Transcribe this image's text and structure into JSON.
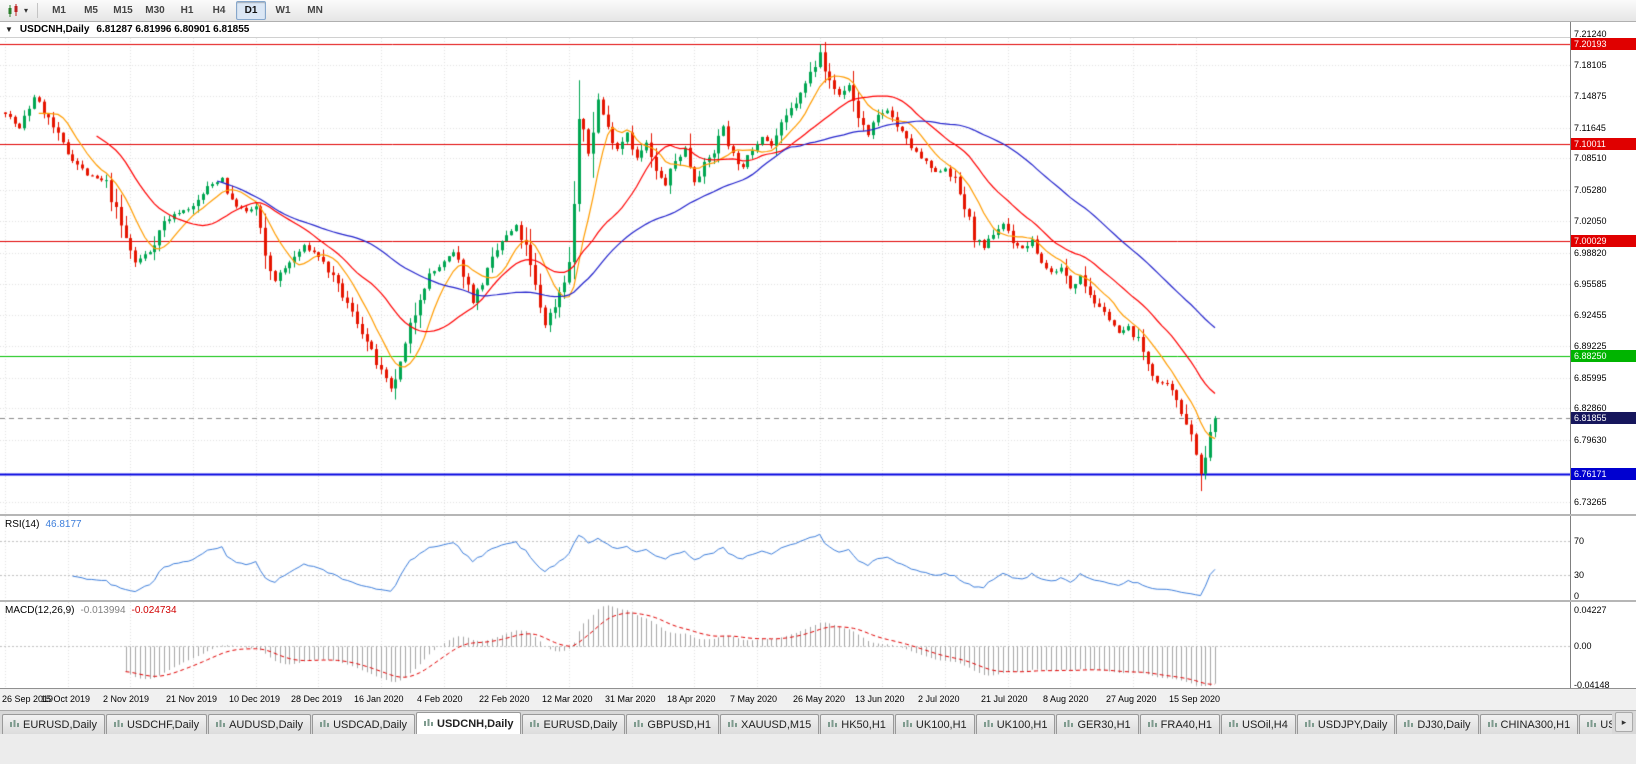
{
  "toolbar": {
    "timeframes": [
      "M1",
      "M5",
      "M15",
      "M30",
      "H1",
      "H4",
      "D1",
      "W1",
      "MN"
    ],
    "active_timeframe": "D1"
  },
  "chart": {
    "title_symbol": "USDCNH,Daily",
    "ohlc": "6.81287 6.81996 6.80901 6.81855"
  },
  "price_axis": [
    {
      "label": "7.21240",
      "price": 7.2124,
      "type": "plain"
    },
    {
      "label": "7.20193",
      "price": 7.20193,
      "type": "red"
    },
    {
      "label": "7.18105",
      "price": 7.18105,
      "type": "plain"
    },
    {
      "label": "7.14875",
      "price": 7.14875,
      "type": "plain"
    },
    {
      "label": "7.11645",
      "price": 7.11645,
      "type": "plain"
    },
    {
      "label": "7.10011",
      "price": 7.10011,
      "type": "red"
    },
    {
      "label": "7.08510",
      "price": 7.0851,
      "type": "plain"
    },
    {
      "label": "7.05280",
      "price": 7.0528,
      "type": "plain"
    },
    {
      "label": "7.02050",
      "price": 7.0205,
      "type": "plain"
    },
    {
      "label": "7.00029",
      "price": 7.00029,
      "type": "red"
    },
    {
      "label": "6.98820",
      "price": 6.9882,
      "type": "plain"
    },
    {
      "label": "6.95585",
      "price": 6.95585,
      "type": "plain"
    },
    {
      "label": "6.92455",
      "price": 6.92455,
      "type": "plain"
    },
    {
      "label": "6.89225",
      "price": 6.89225,
      "type": "plain"
    },
    {
      "label": "6.88250",
      "price": 6.8825,
      "type": "green"
    },
    {
      "label": "6.85995",
      "price": 6.85995,
      "type": "plain"
    },
    {
      "label": "6.82860",
      "price": 6.8286,
      "type": "plain"
    },
    {
      "label": "6.81855",
      "price": 6.81855,
      "type": "dark"
    },
    {
      "label": "6.79630",
      "price": 6.7963,
      "type": "plain"
    },
    {
      "label": "6.76171",
      "price": 6.76171,
      "type": "blue"
    },
    {
      "label": "6.73265",
      "price": 6.73265,
      "type": "plain"
    }
  ],
  "rsi": {
    "title": "RSI(14)",
    "value": "46.8177",
    "axis": [
      {
        "label": "70",
        "v": 70
      },
      {
        "label": "30",
        "v": 30
      },
      {
        "label": "0",
        "v": 0
      }
    ]
  },
  "macd": {
    "title": "MACD(12,26,9)",
    "value_main": "-0.013994",
    "value_signal": "-0.024734",
    "axis": [
      {
        "label": "0.04227",
        "v": 0.04227
      },
      {
        "label": "0.00",
        "v": 0
      },
      {
        "label": "-0.04148",
        "v": -0.04148
      }
    ]
  },
  "tabs": [
    {
      "label": "EURUSD,Daily"
    },
    {
      "label": "USDCHF,Daily"
    },
    {
      "label": "AUDUSD,Daily"
    },
    {
      "label": "USDCAD,Daily"
    },
    {
      "label": "USDCNH,Daily",
      "active": true
    },
    {
      "label": "EURUSD,Daily"
    },
    {
      "label": "GBPUSD,H1"
    },
    {
      "label": "XAUUSD,M15"
    },
    {
      "label": "HK50,H1"
    },
    {
      "label": "UK100,H1"
    },
    {
      "label": "UK100,H1"
    },
    {
      "label": "GER30,H1"
    },
    {
      "label": "FRA40,H1"
    },
    {
      "label": "USOil,H4"
    },
    {
      "label": "USDJPY,Daily"
    },
    {
      "label": "DJ30,Daily"
    },
    {
      "label": "CHINA300,H1"
    },
    {
      "label": "USOil,H"
    }
  ],
  "chart_data": {
    "type": "candlestick",
    "symbol": "USDCNH",
    "timeframe": "Daily",
    "last_ohlc": {
      "open": 6.81287,
      "high": 6.81996,
      "low": 6.80901,
      "close": 6.81855
    },
    "price_range": [
      6.73265,
      7.2124
    ],
    "num_candles": 252,
    "seed": 7,
    "horizontal_levels": [
      {
        "price": 7.20193,
        "color": "#e00000",
        "width": 1,
        "style": "solid"
      },
      {
        "price": 7.10011,
        "color": "#e00000",
        "width": 1,
        "style": "solid"
      },
      {
        "price": 7.00029,
        "color": "#e00000",
        "width": 1,
        "style": "solid"
      },
      {
        "price": 6.8825,
        "color": "#00c000",
        "width": 1,
        "style": "solid"
      },
      {
        "price": 6.76171,
        "color": "#0000e0",
        "width": 2,
        "style": "solid"
      },
      {
        "price": 6.81855,
        "color": "#888888",
        "width": 1,
        "style": "dashed"
      }
    ],
    "moving_averages": [
      {
        "period": 8,
        "color": "#ff9c00"
      },
      {
        "period": 20,
        "color": "#ff0000"
      },
      {
        "period": 45,
        "color": "#2222cc"
      }
    ],
    "indicators": {
      "rsi_period": 14,
      "macd": [
        12,
        26,
        9
      ]
    },
    "date_ticks": [
      {
        "index": 0,
        "label": "26 Sep 2019"
      },
      {
        "index": 13,
        "label": "15 Oct 2019"
      },
      {
        "index": 26,
        "label": "2 Nov 2019"
      },
      {
        "index": 39,
        "label": "21 Nov 2019"
      },
      {
        "index": 52,
        "label": "10 Dec 2019"
      },
      {
        "index": 65,
        "label": "28 Dec 2019"
      },
      {
        "index": 78,
        "label": "16 Jan 2020"
      },
      {
        "index": 91,
        "label": "4 Feb 2020"
      },
      {
        "index": 104,
        "label": "22 Feb 2020"
      },
      {
        "index": 117,
        "label": "12 Mar 2020"
      },
      {
        "index": 130,
        "label": "31 Mar 2020"
      },
      {
        "index": 143,
        "label": "18 Apr 2020"
      },
      {
        "index": 156,
        "label": "7 May 2020"
      },
      {
        "index": 169,
        "label": "26 May 2020"
      },
      {
        "index": 182,
        "label": "13 Jun 2020"
      },
      {
        "index": 195,
        "label": "2 Jul 2020"
      },
      {
        "index": 208,
        "label": "21 Jul 2020"
      },
      {
        "index": 221,
        "label": "8 Aug 2020"
      },
      {
        "index": 234,
        "label": "27 Aug 2020"
      },
      {
        "index": 247,
        "label": "15 Sep 2020"
      }
    ],
    "swing_points": [
      {
        "index": 80,
        "low": 6.8455
      },
      {
        "index": 119,
        "high": 7.165
      },
      {
        "index": 169,
        "high": 7.2019
      },
      {
        "index": 248,
        "low": 6.7438
      }
    ],
    "close_anchors": [
      [
        0,
        7.132
      ],
      [
        3,
        7.115
      ],
      [
        6,
        7.148
      ],
      [
        9,
        7.125
      ],
      [
        13,
        7.09
      ],
      [
        17,
        7.068
      ],
      [
        21,
        7.06
      ],
      [
        24,
        7.015
      ],
      [
        27,
        6.978
      ],
      [
        30,
        6.99
      ],
      [
        33,
        7.02
      ],
      [
        36,
        7.03
      ],
      [
        39,
        7.035
      ],
      [
        42,
        7.055
      ],
      [
        45,
        7.065
      ],
      [
        47,
        7.04
      ],
      [
        50,
        7.03
      ],
      [
        52,
        7.035
      ],
      [
        54,
        6.98
      ],
      [
        56,
        6.96
      ],
      [
        59,
        6.978
      ],
      [
        62,
        6.995
      ],
      [
        65,
        6.985
      ],
      [
        68,
        6.962
      ],
      [
        71,
        6.935
      ],
      [
        74,
        6.908
      ],
      [
        76,
        6.885
      ],
      [
        78,
        6.865
      ],
      [
        80,
        6.848
      ],
      [
        82,
        6.872
      ],
      [
        84,
        6.91
      ],
      [
        86,
        6.945
      ],
      [
        88,
        6.965
      ],
      [
        91,
        6.978
      ],
      [
        93,
        6.988
      ],
      [
        95,
        6.968
      ],
      [
        97,
        6.938
      ],
      [
        99,
        6.958
      ],
      [
        101,
        6.98
      ],
      [
        103,
        7.0
      ],
      [
        106,
        7.015
      ],
      [
        108,
        6.992
      ],
      [
        110,
        6.952
      ],
      [
        112,
        6.915
      ],
      [
        114,
        6.935
      ],
      [
        116,
        6.962
      ],
      [
        117,
        6.975
      ],
      [
        118,
        7.04
      ],
      [
        119,
        7.125
      ],
      [
        121,
        7.09
      ],
      [
        123,
        7.145
      ],
      [
        125,
        7.115
      ],
      [
        127,
        7.095
      ],
      [
        129,
        7.112
      ],
      [
        131,
        7.085
      ],
      [
        133,
        7.1
      ],
      [
        135,
        7.07
      ],
      [
        137,
        7.058
      ],
      [
        139,
        7.082
      ],
      [
        141,
        7.095
      ],
      [
        143,
        7.062
      ],
      [
        145,
        7.078
      ],
      [
        147,
        7.092
      ],
      [
        149,
        7.118
      ],
      [
        151,
        7.088
      ],
      [
        153,
        7.075
      ],
      [
        155,
        7.095
      ],
      [
        157,
        7.108
      ],
      [
        159,
        7.098
      ],
      [
        161,
        7.118
      ],
      [
        163,
        7.135
      ],
      [
        165,
        7.15
      ],
      [
        167,
        7.172
      ],
      [
        169,
        7.195
      ],
      [
        171,
        7.162
      ],
      [
        173,
        7.15
      ],
      [
        175,
        7.16
      ],
      [
        177,
        7.128
      ],
      [
        179,
        7.108
      ],
      [
        181,
        7.128
      ],
      [
        183,
        7.135
      ],
      [
        185,
        7.118
      ],
      [
        187,
        7.103
      ],
      [
        189,
        7.09
      ],
      [
        191,
        7.08
      ],
      [
        193,
        7.07
      ],
      [
        195,
        7.075
      ],
      [
        197,
        7.062
      ],
      [
        199,
        7.035
      ],
      [
        201,
        7.005
      ],
      [
        203,
        6.992
      ],
      [
        205,
        7.008
      ],
      [
        207,
        7.018
      ],
      [
        209,
        7.0
      ],
      [
        211,
        6.992
      ],
      [
        213,
        7.0
      ],
      [
        215,
        6.978
      ],
      [
        217,
        6.968
      ],
      [
        219,
        6.972
      ],
      [
        221,
        6.952
      ],
      [
        223,
        6.966
      ],
      [
        225,
        6.946
      ],
      [
        227,
        6.93
      ],
      [
        229,
        6.922
      ],
      [
        231,
        6.905
      ],
      [
        233,
        6.912
      ],
      [
        235,
        6.898
      ],
      [
        237,
        6.875
      ],
      [
        239,
        6.855
      ],
      [
        241,
        6.852
      ],
      [
        243,
        6.838
      ],
      [
        245,
        6.815
      ],
      [
        247,
        6.788
      ],
      [
        248,
        6.76
      ],
      [
        249,
        6.775
      ],
      [
        250,
        6.805
      ],
      [
        251,
        6.81855
      ]
    ],
    "colors": {
      "up": "#00a651",
      "down": "#e51400",
      "rsi": "#3d7edb",
      "macd_hist": "#a6a6a6",
      "macd_signal": "#e00000",
      "grid": "#e0e0e0"
    }
  }
}
